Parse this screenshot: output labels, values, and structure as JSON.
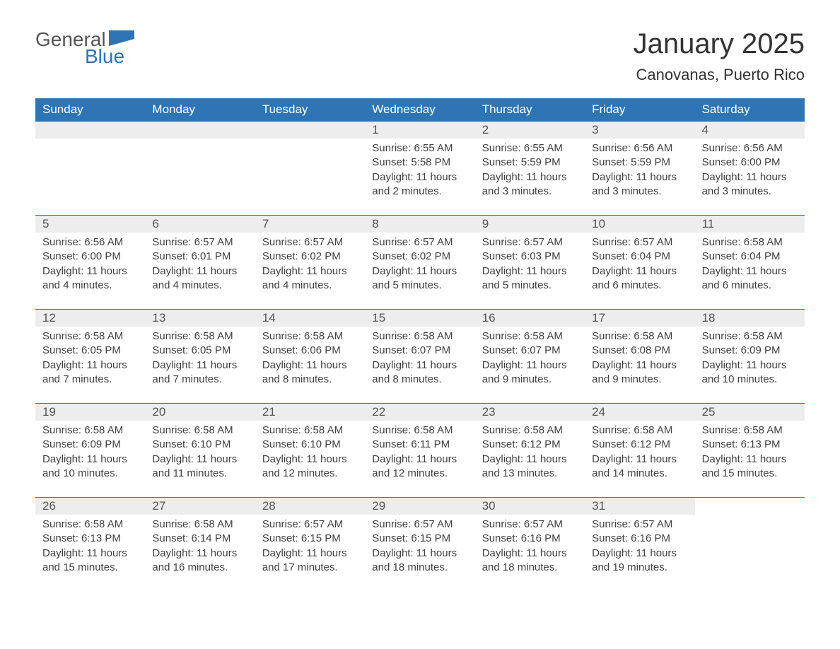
{
  "logo": {
    "text1": "General",
    "text2": "Blue",
    "flag_color": "#2e75b6"
  },
  "title": "January 2025",
  "location": "Canovanas, Puerto Rico",
  "colors": {
    "header_bg": "#2e75b6",
    "header_text": "#ffffff",
    "daynum_bg": "#ededed",
    "body_text": "#404040",
    "page_bg": "#ffffff"
  },
  "day_names": [
    "Sunday",
    "Monday",
    "Tuesday",
    "Wednesday",
    "Thursday",
    "Friday",
    "Saturday"
  ],
  "weeks": [
    [
      null,
      null,
      null,
      {
        "n": "1",
        "sunrise": "Sunrise: 6:55 AM",
        "sunset": "Sunset: 5:58 PM",
        "daylight": "Daylight: 11 hours and 2 minutes."
      },
      {
        "n": "2",
        "sunrise": "Sunrise: 6:55 AM",
        "sunset": "Sunset: 5:59 PM",
        "daylight": "Daylight: 11 hours and 3 minutes."
      },
      {
        "n": "3",
        "sunrise": "Sunrise: 6:56 AM",
        "sunset": "Sunset: 5:59 PM",
        "daylight": "Daylight: 11 hours and 3 minutes."
      },
      {
        "n": "4",
        "sunrise": "Sunrise: 6:56 AM",
        "sunset": "Sunset: 6:00 PM",
        "daylight": "Daylight: 11 hours and 3 minutes."
      }
    ],
    [
      {
        "n": "5",
        "sunrise": "Sunrise: 6:56 AM",
        "sunset": "Sunset: 6:00 PM",
        "daylight": "Daylight: 11 hours and 4 minutes."
      },
      {
        "n": "6",
        "sunrise": "Sunrise: 6:57 AM",
        "sunset": "Sunset: 6:01 PM",
        "daylight": "Daylight: 11 hours and 4 minutes."
      },
      {
        "n": "7",
        "sunrise": "Sunrise: 6:57 AM",
        "sunset": "Sunset: 6:02 PM",
        "daylight": "Daylight: 11 hours and 4 minutes."
      },
      {
        "n": "8",
        "sunrise": "Sunrise: 6:57 AM",
        "sunset": "Sunset: 6:02 PM",
        "daylight": "Daylight: 11 hours and 5 minutes."
      },
      {
        "n": "9",
        "sunrise": "Sunrise: 6:57 AM",
        "sunset": "Sunset: 6:03 PM",
        "daylight": "Daylight: 11 hours and 5 minutes."
      },
      {
        "n": "10",
        "sunrise": "Sunrise: 6:57 AM",
        "sunset": "Sunset: 6:04 PM",
        "daylight": "Daylight: 11 hours and 6 minutes."
      },
      {
        "n": "11",
        "sunrise": "Sunrise: 6:58 AM",
        "sunset": "Sunset: 6:04 PM",
        "daylight": "Daylight: 11 hours and 6 minutes."
      }
    ],
    [
      {
        "n": "12",
        "sunrise": "Sunrise: 6:58 AM",
        "sunset": "Sunset: 6:05 PM",
        "daylight": "Daylight: 11 hours and 7 minutes."
      },
      {
        "n": "13",
        "sunrise": "Sunrise: 6:58 AM",
        "sunset": "Sunset: 6:05 PM",
        "daylight": "Daylight: 11 hours and 7 minutes."
      },
      {
        "n": "14",
        "sunrise": "Sunrise: 6:58 AM",
        "sunset": "Sunset: 6:06 PM",
        "daylight": "Daylight: 11 hours and 8 minutes."
      },
      {
        "n": "15",
        "sunrise": "Sunrise: 6:58 AM",
        "sunset": "Sunset: 6:07 PM",
        "daylight": "Daylight: 11 hours and 8 minutes."
      },
      {
        "n": "16",
        "sunrise": "Sunrise: 6:58 AM",
        "sunset": "Sunset: 6:07 PM",
        "daylight": "Daylight: 11 hours and 9 minutes."
      },
      {
        "n": "17",
        "sunrise": "Sunrise: 6:58 AM",
        "sunset": "Sunset: 6:08 PM",
        "daylight": "Daylight: 11 hours and 9 minutes."
      },
      {
        "n": "18",
        "sunrise": "Sunrise: 6:58 AM",
        "sunset": "Sunset: 6:09 PM",
        "daylight": "Daylight: 11 hours and 10 minutes."
      }
    ],
    [
      {
        "n": "19",
        "sunrise": "Sunrise: 6:58 AM",
        "sunset": "Sunset: 6:09 PM",
        "daylight": "Daylight: 11 hours and 10 minutes."
      },
      {
        "n": "20",
        "sunrise": "Sunrise: 6:58 AM",
        "sunset": "Sunset: 6:10 PM",
        "daylight": "Daylight: 11 hours and 11 minutes."
      },
      {
        "n": "21",
        "sunrise": "Sunrise: 6:58 AM",
        "sunset": "Sunset: 6:10 PM",
        "daylight": "Daylight: 11 hours and 12 minutes."
      },
      {
        "n": "22",
        "sunrise": "Sunrise: 6:58 AM",
        "sunset": "Sunset: 6:11 PM",
        "daylight": "Daylight: 11 hours and 12 minutes."
      },
      {
        "n": "23",
        "sunrise": "Sunrise: 6:58 AM",
        "sunset": "Sunset: 6:12 PM",
        "daylight": "Daylight: 11 hours and 13 minutes."
      },
      {
        "n": "24",
        "sunrise": "Sunrise: 6:58 AM",
        "sunset": "Sunset: 6:12 PM",
        "daylight": "Daylight: 11 hours and 14 minutes."
      },
      {
        "n": "25",
        "sunrise": "Sunrise: 6:58 AM",
        "sunset": "Sunset: 6:13 PM",
        "daylight": "Daylight: 11 hours and 15 minutes."
      }
    ],
    [
      {
        "n": "26",
        "sunrise": "Sunrise: 6:58 AM",
        "sunset": "Sunset: 6:13 PM",
        "daylight": "Daylight: 11 hours and 15 minutes."
      },
      {
        "n": "27",
        "sunrise": "Sunrise: 6:58 AM",
        "sunset": "Sunset: 6:14 PM",
        "daylight": "Daylight: 11 hours and 16 minutes."
      },
      {
        "n": "28",
        "sunrise": "Sunrise: 6:57 AM",
        "sunset": "Sunset: 6:15 PM",
        "daylight": "Daylight: 11 hours and 17 minutes."
      },
      {
        "n": "29",
        "sunrise": "Sunrise: 6:57 AM",
        "sunset": "Sunset: 6:15 PM",
        "daylight": "Daylight: 11 hours and 18 minutes."
      },
      {
        "n": "30",
        "sunrise": "Sunrise: 6:57 AM",
        "sunset": "Sunset: 6:16 PM",
        "daylight": "Daylight: 11 hours and 18 minutes."
      },
      {
        "n": "31",
        "sunrise": "Sunrise: 6:57 AM",
        "sunset": "Sunset: 6:16 PM",
        "daylight": "Daylight: 11 hours and 19 minutes."
      },
      null
    ]
  ]
}
